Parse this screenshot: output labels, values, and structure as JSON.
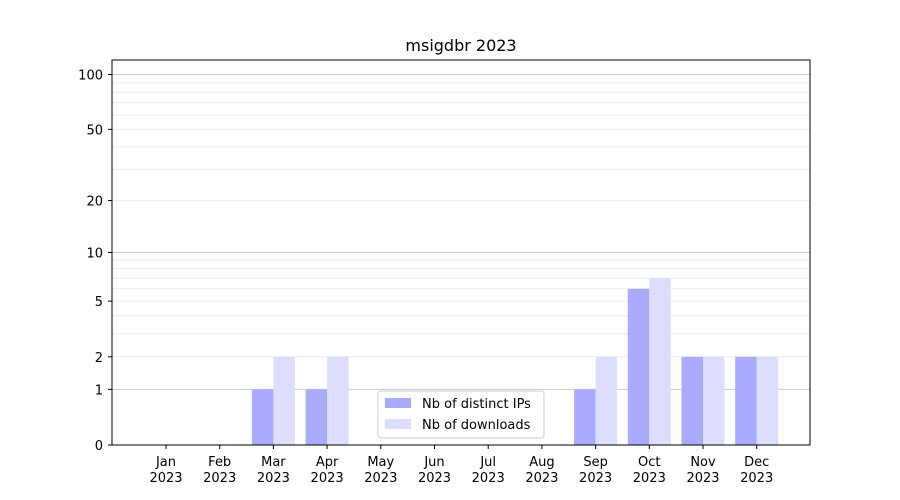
{
  "chart_data": {
    "type": "bar",
    "title": "msigdbr 2023",
    "xlabel": "",
    "ylabel": "",
    "yscale": "symlog",
    "ylim": [
      0,
      120
    ],
    "yticks": [
      0,
      1,
      2,
      5,
      10,
      20,
      50,
      100
    ],
    "ytick_labels": [
      "0",
      "1",
      "2",
      "5",
      "10",
      "20",
      "50",
      "100"
    ],
    "categories": [
      [
        "Jan",
        "2023"
      ],
      [
        "Feb",
        "2023"
      ],
      [
        "Mar",
        "2023"
      ],
      [
        "Apr",
        "2023"
      ],
      [
        "May",
        "2023"
      ],
      [
        "Jun",
        "2023"
      ],
      [
        "Jul",
        "2023"
      ],
      [
        "Aug",
        "2023"
      ],
      [
        "Sep",
        "2023"
      ],
      [
        "Oct",
        "2023"
      ],
      [
        "Nov",
        "2023"
      ],
      [
        "Dec",
        "2023"
      ]
    ],
    "series": [
      {
        "name": "Nb of distinct IPs",
        "color": "#aaaaff",
        "values": [
          0,
          0,
          1,
          1,
          0,
          0,
          0,
          0,
          1,
          6,
          2,
          2
        ]
      },
      {
        "name": "Nb of downloads",
        "color": "#ddddff",
        "values": [
          0,
          0,
          2,
          2,
          0,
          0,
          0,
          0,
          2,
          7,
          2,
          2
        ]
      }
    ],
    "grid": true,
    "legend_position": "lower-center"
  }
}
